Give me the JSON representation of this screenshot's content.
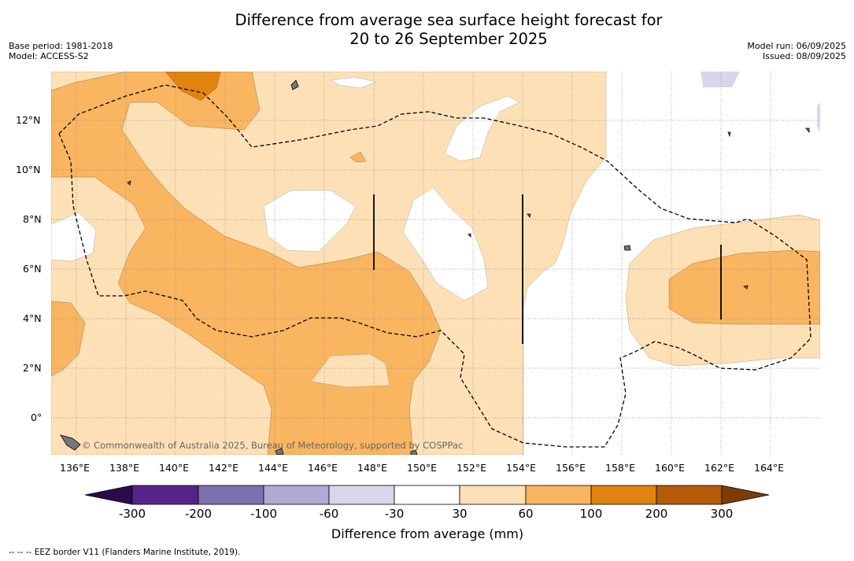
{
  "title_line1": "Difference from average sea surface height forecast for",
  "title_line2": "20 to 26 September 2025",
  "meta_left": [
    "Base period: 1981-2018",
    "Model: ACCESS-S2"
  ],
  "meta_right": [
    "Model run: 06/09/2025",
    "Issued: 08/09/2025"
  ],
  "map": {
    "lon_range": [
      135,
      166
    ],
    "lat_range": [
      -1.5,
      14
    ],
    "lon_ticks": [
      "136°E",
      "138°E",
      "140°E",
      "142°E",
      "144°E",
      "146°E",
      "148°E",
      "150°E",
      "152°E",
      "154°E",
      "156°E",
      "158°E",
      "160°E",
      "162°E",
      "164°E"
    ],
    "lat_ticks": [
      "12°N",
      "10°N",
      "8°N",
      "6°N",
      "4°N",
      "2°N",
      "0°"
    ],
    "copyright": "© Commonwealth of Australia 2025, Bureau of Meteorology, supported by COSPPac"
  },
  "colorbar": {
    "title": "Difference from average (mm)",
    "labels": [
      "-300",
      "-200",
      "-100",
      "-60",
      "-30",
      "30",
      "60",
      "100",
      "200",
      "300"
    ],
    "colors": [
      "#55248a",
      "#7e6fad",
      "#aeaad3",
      "#d6d7ea",
      "#ffffff",
      "#fde0b6",
      "#f9b560",
      "#e1830f",
      "#b55a09"
    ],
    "low_extend_color": "#2c0b4d",
    "high_extend_color": "#7e3c05"
  },
  "footnote": "--  --  -- EEZ border V11 (Flanders Marine Institute, 2019)."
}
